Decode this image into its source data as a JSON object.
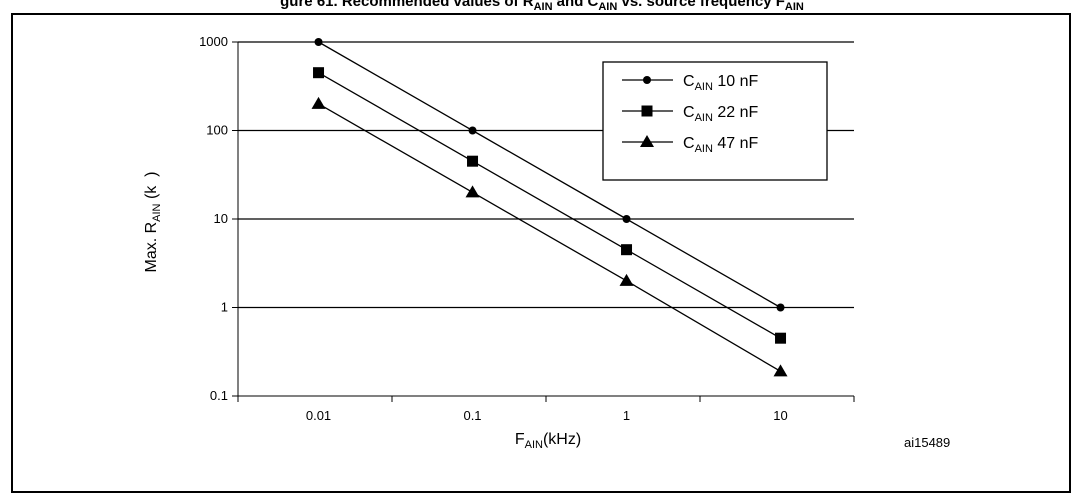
{
  "caption": "gure 61. Recommended values of R",
  "caption_parts": [
    "gure 61. Recommended values of R",
    "AIN",
    " and C",
    "AIN",
    " vs. source frequency F",
    "AIN"
  ],
  "figure_id": "ai15489",
  "chart_data": {
    "type": "line",
    "xscale": "log",
    "yscale": "log",
    "x": [
      0.01,
      0.1,
      1,
      10
    ],
    "x_tick_labels": [
      "0.01",
      "0.1",
      "1",
      "10"
    ],
    "xlim": [
      0.003,
      30
    ],
    "y_tick_values": [
      0.1,
      1,
      10,
      100,
      1000
    ],
    "y_tick_labels": [
      "0.1",
      "1",
      "10",
      "100",
      "1000"
    ],
    "ylim": [
      0.1,
      1000
    ],
    "grid": "horizontal",
    "legend_position": "top-right",
    "xlabel": {
      "main": "F",
      "sub": "AIN",
      "tail": "(kHz)"
    },
    "ylabel": {
      "main": "Max. R",
      "sub": "AIN",
      "tail": " (k  )"
    },
    "series": [
      {
        "name": "10 nF",
        "legend_main": "C",
        "legend_sub": "AIN",
        "legend_tail": " 10 nF",
        "marker": "circle",
        "values": [
          1000,
          100,
          10,
          1
        ]
      },
      {
        "name": "22 nF",
        "legend_main": "C",
        "legend_sub": "AIN",
        "legend_tail": " 22 nF",
        "marker": "square",
        "values": [
          450,
          45,
          4.5,
          0.45
        ]
      },
      {
        "name": "47 nF",
        "legend_main": "C",
        "legend_sub": "AIN",
        "legend_tail": " 47 nF",
        "marker": "triangle",
        "values": [
          200,
          20,
          2,
          0.19
        ]
      }
    ]
  }
}
